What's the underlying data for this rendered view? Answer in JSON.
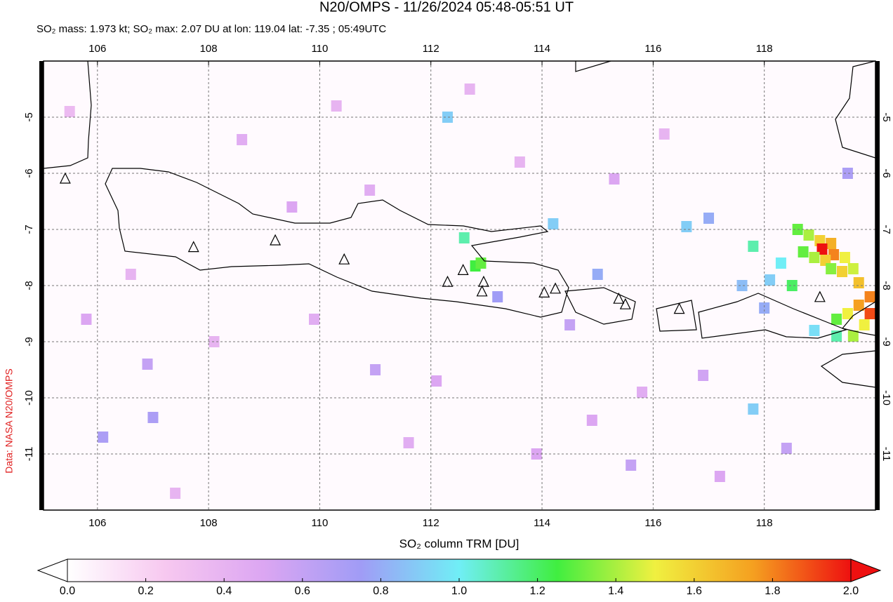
{
  "chart_data": {
    "type": "heatmap-map",
    "title": "N20/OMPS - 11/26/2024 05:48-05:51 UT",
    "subtitle": "SO₂ mass: 1.973 kt; SO₂ max: 2.07 DU at lon: 119.04 lat: -7.35 ; 05:49UTC",
    "colorbar_label": "SO₂ column TRM [DU]",
    "credit": "Data: NASA N20/OMPS",
    "xlim": [
      105.03,
      120.0
    ],
    "ylim": [
      -12.0,
      -4.0
    ],
    "xticks": [
      106,
      108,
      110,
      112,
      114,
      116,
      118
    ],
    "yticks": [
      -5,
      -6,
      -7,
      -8,
      -9,
      -10,
      -11
    ],
    "grid": true,
    "clim": [
      0,
      2
    ],
    "cticks": [
      {
        "value": 0,
        "label": "0.0"
      },
      0.2,
      0.4,
      0.6,
      0.8,
      {
        "value": 1,
        "label": "1.0"
      },
      1.2,
      1.4,
      1.6,
      1.8,
      {
        "value": 2,
        "label": "2.0"
      }
    ],
    "colorscale": [
      "#ffffff",
      "#f7c8f0",
      "#dca6f2",
      "#a09cf6",
      "#70eef6",
      "#40ee40",
      "#f0f040",
      "#f5a020",
      "#ee1010"
    ],
    "cells": {
      "lon": [
        118.6,
        118.8,
        119.0,
        119.2,
        119.04,
        119.25,
        119.45,
        119.1,
        118.9,
        118.7,
        119.6,
        119.4,
        119.2,
        119.7,
        119.9,
        119.7,
        119.9,
        119.5,
        119.3,
        119.8,
        119.6,
        119.3,
        118.9,
        118.5,
        118.3,
        118.1,
        117.8,
        117.6,
        118.0,
        112.8,
        112.6,
        112.9,
        114.2,
        117.0,
        115.0,
        107.0,
        106.1,
        106.9,
        111.0,
        113.2,
        116.6,
        112.3,
        114.5,
        117.8,
        115.6,
        105.8,
        107.4,
        108.6,
        109.5,
        110.3,
        111.6,
        112.1,
        113.6,
        114.9,
        115.8,
        116.2,
        117.2,
        105.5,
        108.1,
        110.9,
        113.9,
        116.9,
        118.4,
        119.5,
        106.6,
        109.9,
        112.7,
        115.3
      ],
      "lat": [
        -7.0,
        -7.1,
        -7.2,
        -7.25,
        -7.35,
        -7.45,
        -7.5,
        -7.55,
        -7.5,
        -7.4,
        -7.7,
        -7.75,
        -7.7,
        -7.95,
        -8.2,
        -8.35,
        -8.5,
        -8.5,
        -8.6,
        -8.7,
        -8.9,
        -8.9,
        -8.8,
        -8.0,
        -7.6,
        -7.9,
        -7.3,
        -8.0,
        -8.4,
        -7.65,
        -7.15,
        -7.6,
        -6.9,
        -6.8,
        -7.8,
        -10.35,
        -10.7,
        -9.4,
        -9.5,
        -8.2,
        -6.95,
        -5.0,
        -8.7,
        -10.2,
        -11.2,
        -8.6,
        -11.7,
        -5.4,
        -6.6,
        -4.8,
        -10.8,
        -9.7,
        -5.8,
        -10.4,
        -9.9,
        -5.3,
        -11.4,
        -4.9,
        -9.0,
        -6.3,
        -11.0,
        -9.6,
        -10.9,
        -6.0,
        -7.8,
        -8.6,
        -4.5,
        -6.1
      ],
      "values": [
        1.3,
        1.4,
        1.6,
        1.7,
        2.07,
        1.8,
        1.5,
        1.6,
        1.4,
        1.3,
        1.45,
        1.6,
        1.35,
        1.65,
        1.8,
        1.75,
        1.9,
        1.5,
        1.3,
        1.5,
        1.4,
        1.1,
        0.95,
        1.2,
        1.0,
        0.9,
        1.1,
        0.85,
        0.8,
        1.25,
        1.1,
        1.3,
        0.9,
        0.8,
        0.8,
        0.7,
        0.7,
        0.6,
        0.6,
        0.75,
        0.9,
        0.9,
        0.6,
        0.9,
        0.6,
        0.5,
        0.4,
        0.45,
        0.5,
        0.4,
        0.45,
        0.5,
        0.4,
        0.5,
        0.45,
        0.4,
        0.5,
        0.35,
        0.4,
        0.45,
        0.5,
        0.55,
        0.6,
        0.7,
        0.4,
        0.45,
        0.4,
        0.5
      ]
    },
    "volcanoes": {
      "lon": [
        105.42,
        107.73,
        109.2,
        110.44,
        112.3,
        112.58,
        112.95,
        112.92,
        114.04,
        114.24,
        115.38,
        115.5,
        116.47,
        119.0
      ],
      "lat": [
        -6.1,
        -7.32,
        -7.2,
        -7.54,
        -7.94,
        -7.73,
        -7.94,
        -8.11,
        -8.13,
        -8.06,
        -8.24,
        -8.34,
        -8.42,
        -8.21
      ]
    }
  }
}
